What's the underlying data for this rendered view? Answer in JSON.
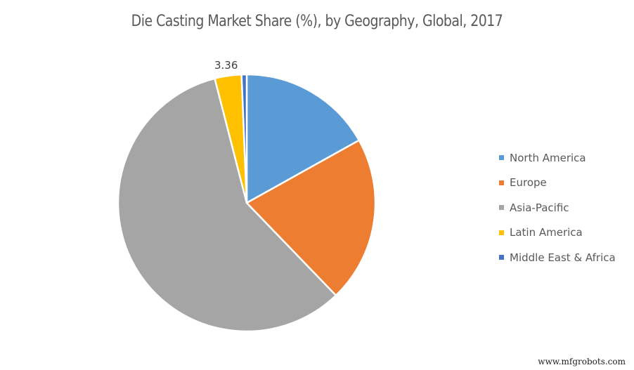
{
  "chart_data": {
    "type": "pie",
    "title": "Die Casting Market Share (%), by Geography, Global, 2017",
    "categories": [
      "North America",
      "Europe",
      "Asia-Pacific",
      "Latin America",
      "Middle East & Africa"
    ],
    "values": [
      16.9,
      20.9,
      58.2,
      3.36,
      0.64
    ],
    "colors": [
      "#5B9BD5",
      "#ED7D31",
      "#A5A5A5",
      "#FFC000",
      "#4472C4"
    ],
    "data_labels": [
      {
        "category": "Latin America",
        "text": "3.36"
      }
    ],
    "legend_position": "right",
    "start_angle_deg": 0
  },
  "title": "Die Casting Market Share (%), by Geography, Global, 2017",
  "legend": [
    {
      "label": "North America",
      "color": "#5B9BD5"
    },
    {
      "label": "Europe",
      "color": "#ED7D31"
    },
    {
      "label": "Asia-Pacific",
      "color": "#A5A5A5"
    },
    {
      "label": "Latin America",
      "color": "#FFC000"
    },
    {
      "label": "Middle East & Africa",
      "color": "#4472C4"
    }
  ],
  "data_label": "3.36",
  "watermark": "www.mfgrobots.com"
}
